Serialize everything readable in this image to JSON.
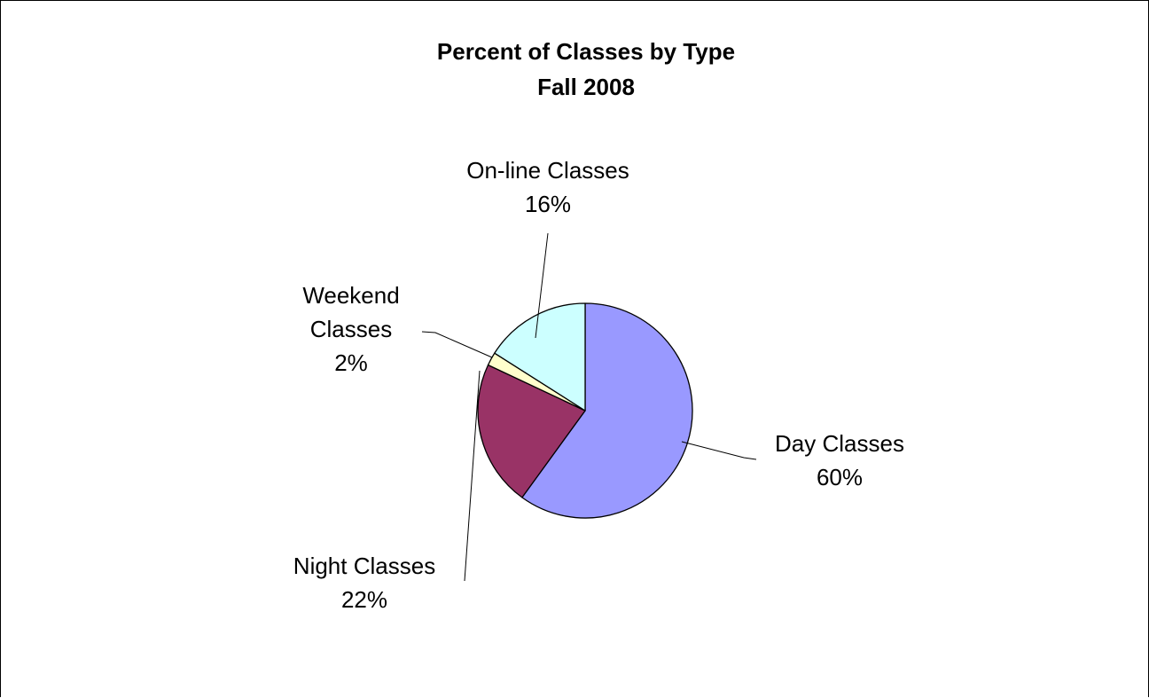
{
  "chart_data": {
    "type": "pie",
    "title": "Percent of Classes by Type",
    "subtitle": "Fall 2008",
    "slices": [
      {
        "name": "Day Classes",
        "value": 60,
        "label": "60%",
        "color": "#9999FF"
      },
      {
        "name": "Night Classes",
        "value": 22,
        "label": "22%",
        "color": "#993366"
      },
      {
        "name": "Weekend Classes",
        "value": 2,
        "label": "2%",
        "color": "#FFFFCC"
      },
      {
        "name": "On-line Classes",
        "value": 16,
        "label": "16%",
        "color": "#CCFFFF"
      }
    ],
    "labels": [
      {
        "lines": [
          "Day Classes",
          "60%"
        ]
      },
      {
        "lines": [
          "Night Classes",
          "22%"
        ]
      },
      {
        "lines": [
          "Weekend",
          "Classes",
          "2%"
        ]
      },
      {
        "lines": [
          "On-line Classes",
          "16%"
        ]
      }
    ],
    "legend": "none",
    "grid": false
  }
}
